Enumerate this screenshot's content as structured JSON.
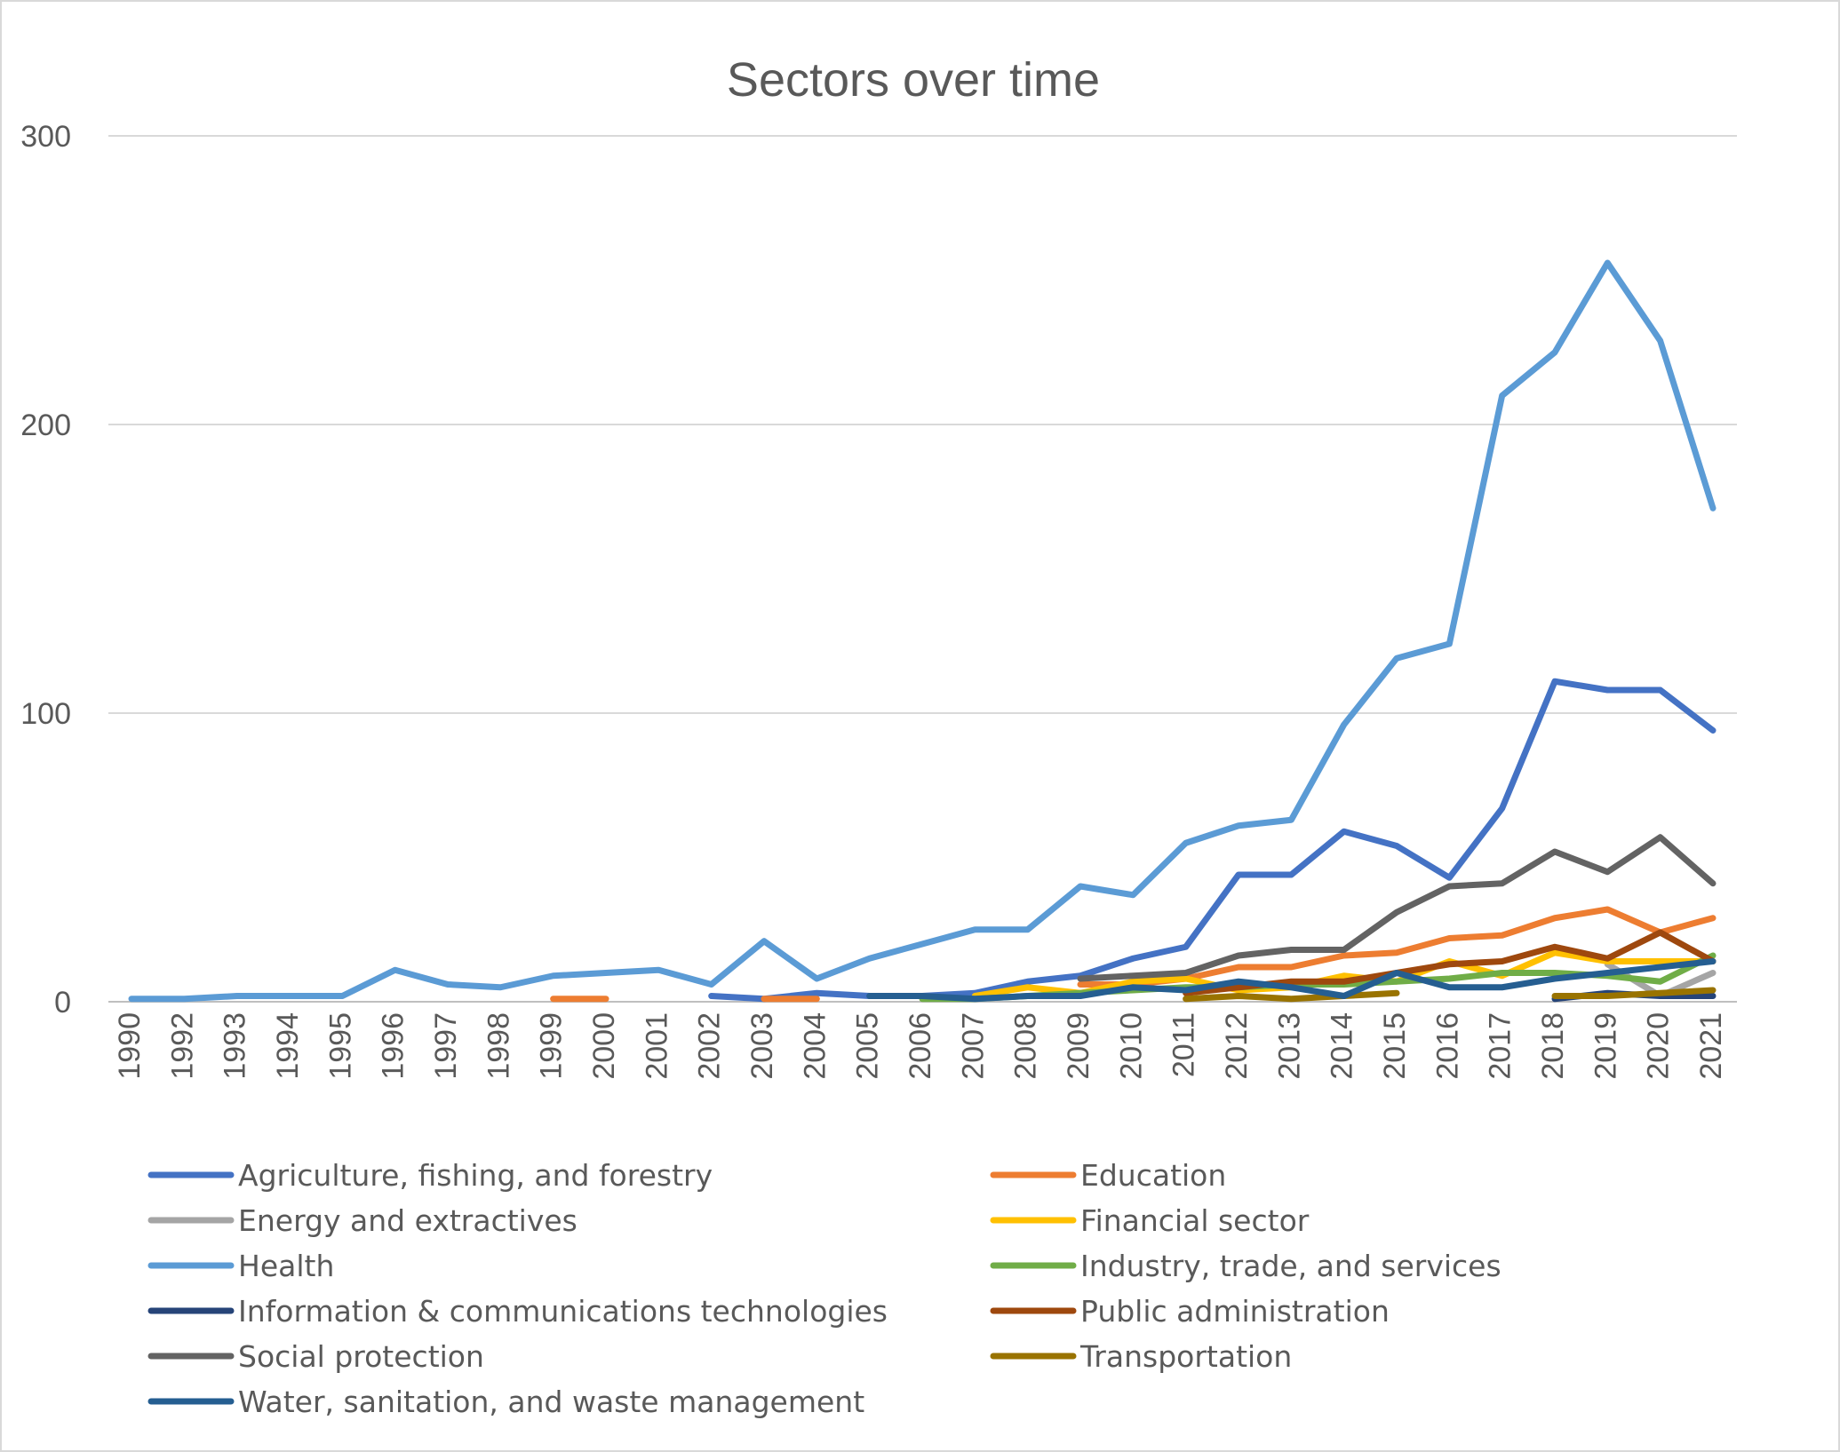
{
  "chart_data": {
    "type": "line",
    "title": "Sectors over time",
    "xlabel": "",
    "ylabel": "",
    "ylim": [
      0,
      300
    ],
    "yticks": [
      0,
      100,
      200,
      300
    ],
    "grid": true,
    "legend_position": "bottom",
    "categories": [
      "1990",
      "1992",
      "1993",
      "1994",
      "1995",
      "1996",
      "1997",
      "1998",
      "1999",
      "2000",
      "2001",
      "2002",
      "2003",
      "2004",
      "2005",
      "2006",
      "2007",
      "2008",
      "2009",
      "2010",
      "2011",
      "2012",
      "2013",
      "2014",
      "2015",
      "2016",
      "2017",
      "2018",
      "2019",
      "2020",
      "2021"
    ],
    "series": [
      {
        "name": "Agriculture, fishing, and forestry",
        "color": "#4472C4",
        "values": [
          null,
          null,
          null,
          null,
          null,
          null,
          null,
          null,
          null,
          null,
          null,
          2,
          1,
          3,
          2,
          2,
          3,
          7,
          9,
          15,
          19,
          44,
          44,
          59,
          54,
          43,
          67,
          111,
          108,
          108,
          94
        ]
      },
      {
        "name": "Education",
        "color": "#ED7D31",
        "values": [
          null,
          null,
          null,
          null,
          null,
          null,
          null,
          null,
          1,
          1,
          null,
          null,
          1,
          1,
          null,
          null,
          null,
          null,
          6,
          6,
          8,
          12,
          12,
          16,
          17,
          22,
          23,
          29,
          32,
          24,
          29
        ]
      },
      {
        "name": "Energy and extractives",
        "color": "#A5A5A5",
        "values": [
          null,
          null,
          null,
          null,
          null,
          null,
          null,
          null,
          null,
          null,
          null,
          null,
          null,
          null,
          null,
          null,
          null,
          null,
          null,
          null,
          null,
          null,
          null,
          null,
          null,
          null,
          null,
          null,
          13,
          2,
          10
        ]
      },
      {
        "name": "Financial sector",
        "color": "#FFC000",
        "values": [
          null,
          null,
          null,
          null,
          null,
          null,
          null,
          null,
          null,
          null,
          null,
          null,
          null,
          null,
          null,
          null,
          2,
          5,
          3,
          7,
          8,
          4,
          5,
          9,
          7,
          14,
          9,
          17,
          14,
          14,
          14
        ]
      },
      {
        "name": "Health",
        "color": "#5B9BD5",
        "values": [
          1,
          1,
          2,
          2,
          2,
          11,
          6,
          5,
          9,
          10,
          11,
          6,
          21,
          8,
          15,
          20,
          25,
          25,
          40,
          37,
          55,
          61,
          63,
          96,
          119,
          124,
          210,
          225,
          256,
          229,
          171
        ]
      },
      {
        "name": "Industry, trade, and services",
        "color": "#70AD47",
        "values": [
          null,
          null,
          null,
          null,
          null,
          null,
          null,
          null,
          null,
          null,
          null,
          null,
          null,
          null,
          null,
          1,
          1,
          2,
          3,
          4,
          5,
          5,
          6,
          6,
          7,
          8,
          10,
          10,
          9,
          7,
          16
        ]
      },
      {
        "name": "Information & communications technologies",
        "color": "#264478",
        "values": [
          null,
          null,
          null,
          null,
          null,
          null,
          null,
          null,
          null,
          null,
          null,
          null,
          null,
          null,
          null,
          null,
          null,
          null,
          null,
          null,
          null,
          null,
          null,
          null,
          null,
          null,
          null,
          1,
          3,
          2,
          2
        ]
      },
      {
        "name": "Public administration",
        "color": "#9E480E",
        "values": [
          null,
          null,
          null,
          null,
          null,
          null,
          null,
          null,
          null,
          null,
          null,
          null,
          null,
          null,
          null,
          null,
          null,
          null,
          null,
          null,
          3,
          5,
          7,
          7,
          10,
          13,
          14,
          19,
          15,
          24,
          14
        ]
      },
      {
        "name": "Social protection",
        "color": "#636363",
        "values": [
          null,
          null,
          null,
          null,
          null,
          null,
          null,
          null,
          null,
          null,
          null,
          null,
          null,
          null,
          null,
          null,
          null,
          null,
          8,
          9,
          10,
          16,
          18,
          18,
          31,
          40,
          41,
          52,
          45,
          57,
          41
        ]
      },
      {
        "name": "Transportation",
        "color": "#997300",
        "values": [
          null,
          null,
          null,
          null,
          null,
          null,
          null,
          null,
          null,
          null,
          null,
          null,
          null,
          null,
          null,
          null,
          null,
          null,
          null,
          null,
          1,
          2,
          1,
          2,
          3,
          null,
          null,
          2,
          2,
          3,
          4
        ]
      },
      {
        "name": "Water, sanitation, and waste management",
        "color": "#255E91",
        "values": [
          null,
          null,
          null,
          null,
          null,
          null,
          null,
          null,
          null,
          null,
          null,
          null,
          null,
          null,
          2,
          2,
          1,
          2,
          2,
          5,
          4,
          7,
          5,
          2,
          10,
          5,
          5,
          8,
          10,
          12,
          14
        ]
      }
    ]
  }
}
